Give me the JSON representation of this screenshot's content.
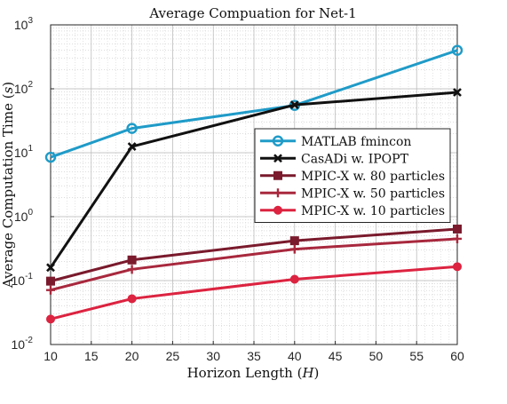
{
  "chart_data": {
    "type": "line",
    "title": "Average Compuation for Net-1",
    "xlabel": "Horizon Length (",
    "xlabel_var": "H",
    "xlabel_end": ")",
    "ylabel": "Average Computation Time (",
    "ylabel_var": "s",
    "ylabel_end": ")",
    "y_scale": "log",
    "xlim": [
      10,
      60
    ],
    "ylim": [
      0.01,
      1000
    ],
    "x_ticks": [
      "10",
      "15",
      "20",
      "25",
      "30",
      "35",
      "40",
      "45",
      "50",
      "55",
      "60"
    ],
    "y_ticks": [
      {
        "base": "10",
        "exp": "-2"
      },
      {
        "base": "10",
        "exp": "-1"
      },
      {
        "base": "10",
        "exp": "0"
      },
      {
        "base": "10",
        "exp": "1"
      },
      {
        "base": "10",
        "exp": "2"
      },
      {
        "base": "10",
        "exp": "3"
      }
    ],
    "grid": true,
    "minor_grid": true,
    "legend_position": "center-right",
    "x": [
      10,
      20,
      40,
      60
    ],
    "series": [
      {
        "name": "MATLAB fmincon",
        "values": [
          8.5,
          24,
          55,
          400
        ],
        "color": "#1f9bc8",
        "marker": "circle-open"
      },
      {
        "name": "CasADi w. IPOPT",
        "values": [
          0.16,
          12.5,
          56,
          88
        ],
        "color": "#111111",
        "marker": "x"
      },
      {
        "name": "MPIC-X w. 80 particles",
        "values": [
          0.098,
          0.21,
          0.42,
          0.64
        ],
        "color": "#7a1a2c",
        "marker": "square"
      },
      {
        "name": "MPIC-X w. 50 particles",
        "values": [
          0.071,
          0.15,
          0.31,
          0.45
        ],
        "color": "#a8283d",
        "marker": "plus"
      },
      {
        "name": "MPIC-X w. 10 particles",
        "values": [
          0.025,
          0.052,
          0.105,
          0.165
        ],
        "color": "#dc2340",
        "marker": "circle"
      }
    ]
  }
}
